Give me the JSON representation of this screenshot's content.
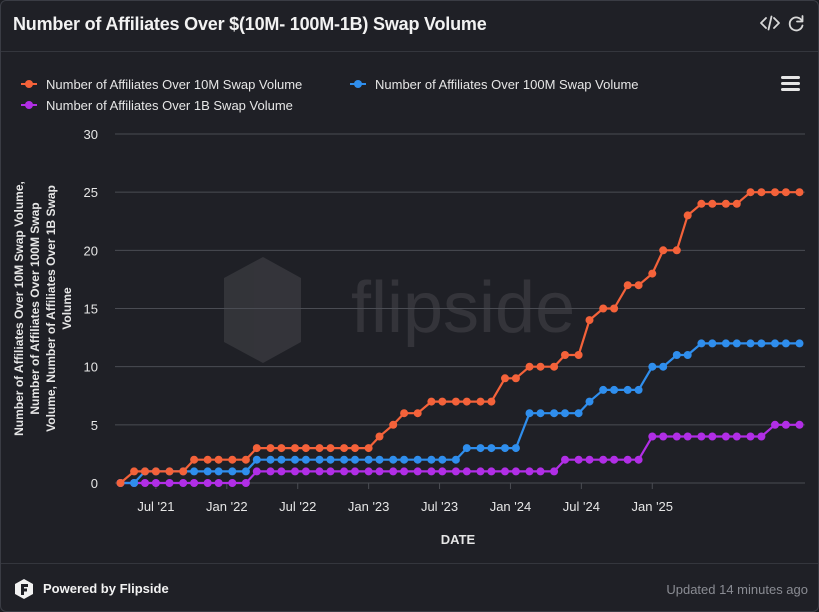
{
  "header": {
    "title": "Number of Affiliates Over $(10M- 100M-1B) Swap Volume",
    "embed_icon": "code-icon",
    "refresh_icon": "refresh-icon"
  },
  "footer": {
    "powered_by": "Powered by Flipside",
    "updated": "Updated 14 minutes ago"
  },
  "watermark": "flipside",
  "colors": {
    "series_10m": "#f4623a",
    "series_100m": "#2f8eed",
    "series_1b": "#b12ee6",
    "grid": "#4a4c53",
    "text": "#e6e6e6"
  },
  "chart_data": {
    "type": "line",
    "xlabel": "DATE",
    "ylabel": "Number of Affiliates Over 10M Swap Volume, Number of Affiliates Over 100M Swap Volume, Number of Affiliates Over 1B Swap Volume",
    "ylim": [
      0,
      30
    ],
    "yticks": [
      "0",
      "5",
      "10",
      "15",
      "20",
      "25",
      "30"
    ],
    "xticks": [
      "Jul '21",
      "Jan '22",
      "Jul '22",
      "Jan '23",
      "Jul '23",
      "Jan '24",
      "Jul '24",
      "Jan '25"
    ],
    "x_note": "x = week index (weeks since 2021-03-29)",
    "legend_position": "top",
    "series": [
      {
        "name": "Number of Affiliates Over 10M Swap Volume",
        "x": [
          0,
          5,
          9,
          13,
          18,
          23,
          27,
          32,
          36,
          41,
          46,
          50,
          55,
          59,
          64,
          68,
          73,
          77,
          82,
          86,
          91,
          95,
          100,
          104,
          109,
          114,
          118,
          123,
          127,
          132,
          136,
          141,
          145,
          150,
          154,
          159,
          163,
          168,
          172,
          177,
          181,
          186,
          190,
          195,
          199,
          204,
          208,
          213,
          217,
          222,
          226,
          231,
          235,
          240,
          244,
          249
        ],
        "values": [
          0,
          1,
          1,
          1,
          1,
          1,
          2,
          2,
          2,
          2,
          2,
          3,
          3,
          3,
          3,
          3,
          3,
          3,
          3,
          3,
          3,
          4,
          5,
          6,
          6,
          7,
          7,
          7,
          7,
          7,
          7,
          9,
          9,
          10,
          10,
          10,
          11,
          11,
          14,
          15,
          15,
          17,
          17,
          18,
          20,
          20,
          23,
          24,
          24,
          24,
          24,
          25,
          25,
          25,
          25,
          25
        ]
      },
      {
        "name": "Number of Affiliates Over 100M Swap Volume",
        "x": [
          0,
          5,
          9,
          13,
          18,
          23,
          27,
          32,
          36,
          41,
          46,
          50,
          55,
          59,
          64,
          68,
          73,
          77,
          82,
          86,
          91,
          95,
          100,
          104,
          109,
          114,
          118,
          123,
          127,
          132,
          136,
          141,
          145,
          150,
          154,
          159,
          163,
          168,
          172,
          177,
          181,
          186,
          190,
          195,
          199,
          204,
          208,
          213,
          217,
          222,
          226,
          231,
          235,
          240,
          244,
          249
        ],
        "values": [
          0,
          0,
          1,
          1,
          1,
          1,
          1,
          1,
          1,
          1,
          1,
          2,
          2,
          2,
          2,
          2,
          2,
          2,
          2,
          2,
          2,
          2,
          2,
          2,
          2,
          2,
          2,
          2,
          3,
          3,
          3,
          3,
          3,
          6,
          6,
          6,
          6,
          6,
          7,
          8,
          8,
          8,
          8,
          10,
          10,
          11,
          11,
          12,
          12,
          12,
          12,
          12,
          12,
          12,
          12,
          12
        ]
      },
      {
        "name": "Number of Affiliates Over 1B Swap Volume",
        "x": [
          0,
          5,
          9,
          13,
          18,
          23,
          27,
          32,
          36,
          41,
          46,
          50,
          55,
          59,
          64,
          68,
          73,
          77,
          82,
          86,
          91,
          95,
          100,
          104,
          109,
          114,
          118,
          123,
          127,
          132,
          136,
          141,
          145,
          150,
          154,
          159,
          163,
          168,
          172,
          177,
          181,
          186,
          190,
          195,
          199,
          204,
          208,
          213,
          217,
          222,
          226,
          231,
          235,
          240,
          244,
          249
        ],
        "values": [
          0,
          0,
          0,
          0,
          0,
          0,
          0,
          0,
          0,
          0,
          0,
          1,
          1,
          1,
          1,
          1,
          1,
          1,
          1,
          1,
          1,
          1,
          1,
          1,
          1,
          1,
          1,
          1,
          1,
          1,
          1,
          1,
          1,
          1,
          1,
          1,
          2,
          2,
          2,
          2,
          2,
          2,
          2,
          4,
          4,
          4,
          4,
          4,
          4,
          4,
          4,
          4,
          4,
          5,
          5,
          5
        ]
      }
    ],
    "xtick_positions": [
      13,
      39,
      65,
      91,
      117,
      143,
      169,
      195
    ],
    "xlim": [
      -2,
      251
    ]
  }
}
